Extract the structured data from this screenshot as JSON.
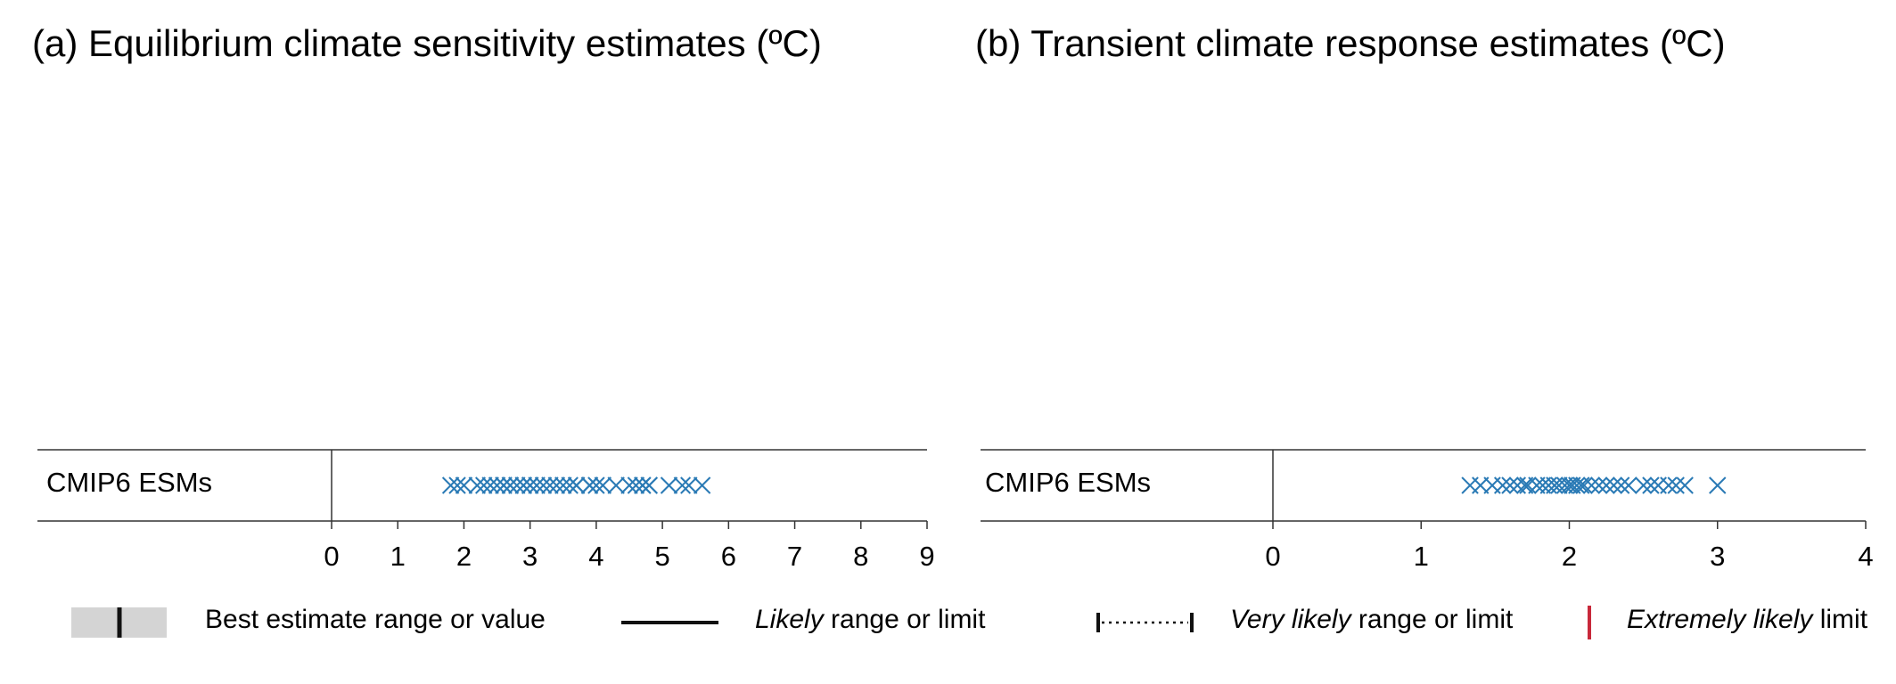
{
  "panels": [
    {
      "title": "(a) Equilibrium climate sensitivity  estimates (ºC)",
      "row_label": "CMIP6 ESMs",
      "chart_data": {
        "type": "scatter",
        "marker": "x",
        "color": "#2a7ab5",
        "xlim": [
          0,
          9
        ],
        "ticks": [
          0,
          1,
          2,
          3,
          4,
          5,
          6,
          7,
          8,
          9
        ],
        "values": [
          1.8,
          1.9,
          2.0,
          2.2,
          2.3,
          2.4,
          2.5,
          2.6,
          2.6,
          2.7,
          2.7,
          2.8,
          2.9,
          2.9,
          3.0,
          3.0,
          3.1,
          3.2,
          3.3,
          3.4,
          3.5,
          3.6,
          3.7,
          3.7,
          3.9,
          3.9,
          4.0,
          4.1,
          4.3,
          4.5,
          4.6,
          4.7,
          4.7,
          4.8,
          4.8,
          5.1,
          5.3,
          5.4,
          5.6
        ]
      }
    },
    {
      "title": "(b) Transient climate response estimates (ºC)",
      "row_label": "CMIP6 ESMs",
      "chart_data": {
        "type": "scatter",
        "marker": "x",
        "color": "#2a7ab5",
        "xlim": [
          0,
          4
        ],
        "ticks": [
          0,
          1,
          2,
          3,
          4
        ],
        "values": [
          1.33,
          1.4,
          1.48,
          1.55,
          1.6,
          1.65,
          1.7,
          1.72,
          1.78,
          1.82,
          1.86,
          1.9,
          1.93,
          1.97,
          2.0,
          2.02,
          2.05,
          2.08,
          2.1,
          2.15,
          2.2,
          2.25,
          2.3,
          2.35,
          2.4,
          2.5,
          2.55,
          2.6,
          2.67,
          2.72,
          2.78,
          3.0
        ]
      }
    }
  ],
  "legend": {
    "best": "Best estimate range or value",
    "likely_italic": "Likely",
    "likely_rest": " range or limit",
    "very_likely_italic": "Very likely",
    "very_likely_rest": " range or limit",
    "extremely_likely_italic": "Extremely likely",
    "extremely_likely_rest": " limit",
    "colors": {
      "box": "#d4d4d4",
      "line": "#111111",
      "extreme": "#c8283a"
    }
  }
}
